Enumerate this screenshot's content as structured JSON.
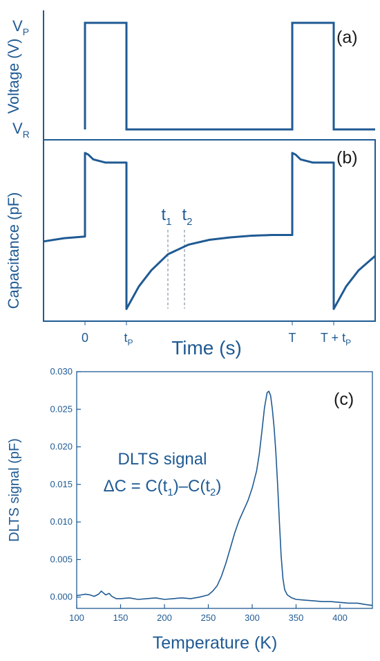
{
  "chart_data": [
    {
      "type": "line",
      "panel_label": "(a)",
      "ylabel": "Voltage (V)",
      "y_ticks": [
        "V",
        "V"
      ],
      "y_tick_subs": [
        "P",
        "R"
      ],
      "series": [
        {
          "x": [
            0,
            0,
            1,
            1,
            5,
            5,
            6,
            6,
            7
          ],
          "values": [
            0,
            1,
            1,
            0,
            0,
            1,
            1,
            0,
            0
          ]
        }
      ],
      "xlim": [
        -1,
        7
      ],
      "ylim": [
        0,
        1
      ],
      "color": "#1f5a93"
    },
    {
      "type": "line",
      "panel_label": "(b)",
      "ylabel": "Capacitance (pF)",
      "xlabel": "Time (s)",
      "x_tick_labels": [
        {
          "main": "0",
          "sub": "",
          "x": 0
        },
        {
          "main": "t",
          "sub": "P",
          "x": 1
        },
        {
          "main": "T",
          "sub": "",
          "x": 5
        },
        {
          "main": "T + t",
          "sub": "P",
          "x": 6
        }
      ],
      "marker_labels": [
        {
          "main": "t",
          "sub": "1",
          "x": 2.0
        },
        {
          "main": "t",
          "sub": "2",
          "x": 2.4
        }
      ],
      "series": [
        {
          "x": [
            -1,
            -0.5,
            0,
            0,
            0.08,
            0.2,
            0.5,
            1,
            1,
            1.3,
            1.6,
            2.0,
            2.5,
            3.0,
            3.5,
            4.0,
            4.5,
            5,
            5,
            5.08,
            5.2,
            5.5,
            6,
            6,
            6.3,
            6.6,
            7
          ],
          "values": [
            0.42,
            0.44,
            0.45,
            0.97,
            0.96,
            0.93,
            0.91,
            0.91,
            0.0,
            0.14,
            0.24,
            0.34,
            0.4,
            0.43,
            0.445,
            0.455,
            0.46,
            0.46,
            0.97,
            0.96,
            0.93,
            0.91,
            0.91,
            0.0,
            0.14,
            0.24,
            0.33
          ]
        }
      ],
      "xlim": [
        -1,
        7
      ],
      "ylim": [
        -0.05,
        1.0
      ],
      "color": "#1f5a93"
    },
    {
      "type": "line",
      "panel_label": "(c)",
      "xlabel": "Temperature (K)",
      "ylabel": "DLTS signal (pF)",
      "annotation": [
        "DLTS signal",
        "ΔC = C(t",
        "1",
        ")–C(t",
        "2",
        ")"
      ],
      "x_ticks": [
        100,
        150,
        200,
        250,
        300,
        350,
        400
      ],
      "y_ticks": [
        0.0,
        0.005,
        0.01,
        0.015,
        0.02,
        0.025,
        0.03
      ],
      "y_tick_labels": [
        "0.000",
        "0.005",
        "0.010",
        "0.015",
        "0.020",
        "0.025",
        "0.030"
      ],
      "xlim": [
        100,
        437
      ],
      "ylim": [
        -0.0015,
        0.03
      ],
      "series": [
        {
          "x": [
            100,
            105,
            110,
            115,
            120,
            125,
            128,
            130,
            133,
            137,
            140,
            145,
            150,
            160,
            170,
            180,
            190,
            200,
            210,
            220,
            230,
            240,
            250,
            255,
            260,
            265,
            270,
            275,
            280,
            285,
            290,
            295,
            300,
            305,
            308,
            311,
            314,
            317,
            319,
            321,
            323,
            325,
            327,
            329,
            331,
            333,
            335,
            337,
            340,
            345,
            350,
            360,
            370,
            380,
            390,
            400,
            410,
            420,
            430,
            437
          ],
          "values": [
            0.0002,
            0.0003,
            0.0004,
            0.0003,
            0.0001,
            0.0004,
            0.0008,
            0.0006,
            0.0003,
            0.0005,
            0.0001,
            -0.0002,
            -0.0002,
            -0.0001,
            -0.0003,
            -0.0002,
            -0.0001,
            -0.0003,
            -0.0002,
            -0.0001,
            -0.0002,
            0.0,
            0.0003,
            0.0008,
            0.0015,
            0.0028,
            0.0045,
            0.0065,
            0.0085,
            0.0102,
            0.0115,
            0.0128,
            0.0145,
            0.0168,
            0.019,
            0.022,
            0.0252,
            0.0272,
            0.0274,
            0.0268,
            0.025,
            0.0225,
            0.0192,
            0.015,
            0.01,
            0.0055,
            0.0025,
            0.001,
            0.0003,
            -0.0001,
            -0.0003,
            -0.0004,
            -0.0005,
            -0.0006,
            -0.0006,
            -0.0007,
            -0.0008,
            -0.0008,
            -0.001,
            -0.0011
          ]
        }
      ],
      "color": "#1f5a93",
      "grid": false
    }
  ]
}
